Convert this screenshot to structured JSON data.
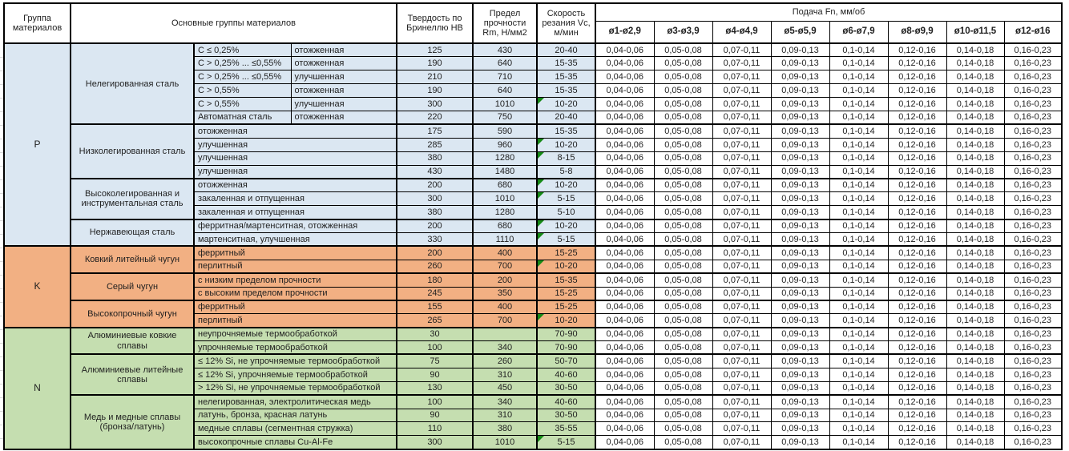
{
  "header": {
    "col_group": "Группа материалов",
    "col_main": "Основные группы материалов",
    "col_hb": "Твердость по Бринеллю НВ",
    "col_rm": "Предел прочности Rm, Н/мм2",
    "col_vc": "Скорость резания Vc, м/мин",
    "feed_title": "Подача Fn, мм/об",
    "feed_cols": [
      "ø1-ø2,9",
      "ø3-ø3,9",
      "ø4-ø4,9",
      "ø5-ø5,9",
      "ø6-ø7,9",
      "ø8-ø9,9",
      "ø10-ø11,5",
      "ø12-ø16"
    ]
  },
  "feed_values": [
    "0,04-0,06",
    "0,05-0,08",
    "0,07-0,11",
    "0,09-0,13",
    "0,1-0,14",
    "0,12-0,16",
    "0,14-0,18",
    "0,16-0,23"
  ],
  "colors": {
    "p": "#dbe7f2",
    "k": "#f2b083",
    "n": "#c5deb0",
    "triangle": "#168a16",
    "border": "#000000"
  },
  "sections": [
    {
      "code": "P",
      "color_key": "p",
      "subgroups": [
        {
          "name": "Нелегированная сталь",
          "rows": [
            {
              "c": "C ≤ 0,25%",
              "state": "отожженная",
              "hb": "125",
              "rm": "430",
              "vc": "20-40",
              "tri": false
            },
            {
              "c": "C > 0,25% ... ≤0,55%",
              "state": "отожженная",
              "hb": "190",
              "rm": "640",
              "vc": "15-35",
              "tri": false
            },
            {
              "c": "C > 0,25% ... ≤0,55%",
              "state": "улучшенная",
              "hb": "210",
              "rm": "710",
              "vc": "15-35",
              "tri": false
            },
            {
              "c": "C > 0,55%",
              "state": "отожженная",
              "hb": "190",
              "rm": "640",
              "vc": "15-35",
              "tri": false
            },
            {
              "c": "C > 0,55%",
              "state": "улучшенная",
              "hb": "300",
              "rm": "1010",
              "vc": "10-20",
              "tri": true
            },
            {
              "c": "Автоматная сталь",
              "state": "отожженная",
              "hb": "220",
              "rm": "750",
              "vc": "20-40",
              "tri": false
            }
          ]
        },
        {
          "name": "Низколегированная сталь",
          "rows": [
            {
              "desc": "отожженная",
              "hb": "175",
              "rm": "590",
              "vc": "15-35",
              "tri": false
            },
            {
              "desc": "улучшенная",
              "hb": "285",
              "rm": "960",
              "vc": "10-20",
              "tri": true
            },
            {
              "desc": "улучшенная",
              "hb": "380",
              "rm": "1280",
              "vc": "8-15",
              "tri": true
            },
            {
              "desc": "улучшенная",
              "hb": "430",
              "rm": "1480",
              "vc": "5-8",
              "tri": false
            }
          ]
        },
        {
          "name": "Высоколегированная и инструментальная сталь",
          "rows": [
            {
              "desc": "отожженная",
              "hb": "200",
              "rm": "680",
              "vc": "10-20",
              "tri": true
            },
            {
              "desc": "закаленная и отпущенная",
              "hb": "300",
              "rm": "1010",
              "vc": "5-15",
              "tri": true
            },
            {
              "desc": "закаленная и отпущенная",
              "hb": "380",
              "rm": "1280",
              "vc": "5-10",
              "tri": false
            }
          ]
        },
        {
          "name": "Нержавеющая сталь",
          "rows": [
            {
              "desc": "ферритная/мартенситная, отожженная",
              "hb": "200",
              "rm": "680",
              "vc": "10-20",
              "tri": true
            },
            {
              "desc": "мартенситная, улучшенная",
              "hb": "330",
              "rm": "1110",
              "vc": "5-15",
              "tri": true
            }
          ]
        }
      ]
    },
    {
      "code": "K",
      "color_key": "k",
      "subgroups": [
        {
          "name": "Ковкий литейный чугун",
          "rows": [
            {
              "desc": "ферритный",
              "hb": "200",
              "rm": "400",
              "vc": "15-25",
              "tri": false
            },
            {
              "desc": "перлитный",
              "hb": "260",
              "rm": "700",
              "vc": "10-20",
              "tri": true
            }
          ]
        },
        {
          "name": "Серый чугун",
          "rows": [
            {
              "desc": "с низким пределом прочности",
              "hb": "180",
              "rm": "200",
              "vc": "15-35",
              "tri": false
            },
            {
              "desc": "с высоким пределом прочности",
              "hb": "245",
              "rm": "350",
              "vc": "15-25",
              "tri": false
            }
          ]
        },
        {
          "name": "Высокопрочный чугун",
          "rows": [
            {
              "desc": "ферритный",
              "hb": "155",
              "rm": "400",
              "vc": "15-25",
              "tri": false
            },
            {
              "desc": "перлитный",
              "hb": "265",
              "rm": "700",
              "vc": "10-20",
              "tri": true
            }
          ]
        }
      ]
    },
    {
      "code": "N",
      "color_key": "n",
      "subgroups": [
        {
          "name": "Алюминиевые ковкие сплавы",
          "rows": [
            {
              "desc": "неупрочняемые термообработкой",
              "hb": "30",
              "rm": "",
              "vc": "70-90",
              "tri": false
            },
            {
              "desc": "упрочняемые термообработкой",
              "hb": "100",
              "rm": "340",
              "vc": "70-90",
              "tri": false
            }
          ]
        },
        {
          "name": "Алюминиевые литейные сплавы",
          "rows": [
            {
              "desc": "≤ 12% Si, не упрочняемые термообработкой",
              "hb": "75",
              "rm": "260",
              "vc": "50-70",
              "tri": false
            },
            {
              "desc": "≤ 12% Si, упрочняемые термообработкой",
              "hb": "90",
              "rm": "310",
              "vc": "40-60",
              "tri": false
            },
            {
              "desc": "> 12% Si, не упрочняемые термообработкой",
              "hb": "130",
              "rm": "450",
              "vc": "30-50",
              "tri": false
            }
          ]
        },
        {
          "name": "Медь и медные сплавы (бронза/латунь)",
          "rows": [
            {
              "desc": "нелегированная, электролитическая медь",
              "hb": "100",
              "rm": "340",
              "vc": "40-60",
              "tri": false
            },
            {
              "desc": "латунь, бронза, красная латунь",
              "hb": "90",
              "rm": "310",
              "vc": "30-50",
              "tri": false
            },
            {
              "desc": "медные сплавы (сегментная стружка)",
              "hb": "110",
              "rm": "380",
              "vc": "35-55",
              "tri": false
            },
            {
              "desc": "высокопрочные сплавы Cu-Al-Fe",
              "hb": "300",
              "rm": "1010",
              "vc": "5-15",
              "tri": true
            }
          ]
        }
      ]
    }
  ]
}
